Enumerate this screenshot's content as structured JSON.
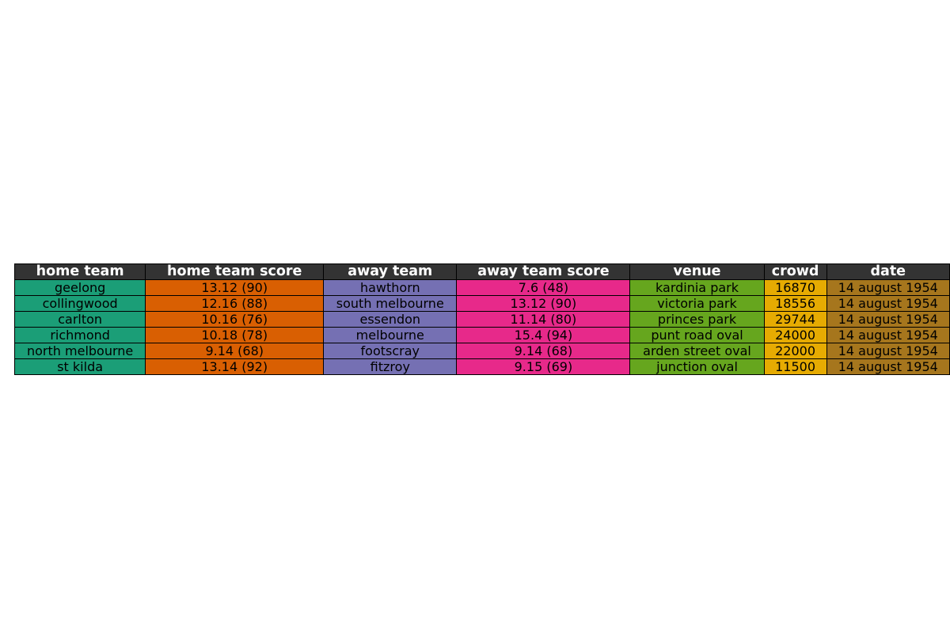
{
  "chart_data": {
    "type": "table",
    "columns": [
      "home team",
      "home team score",
      "away team",
      "away team score",
      "venue",
      "crowd",
      "date"
    ],
    "rows": [
      [
        "geelong",
        "13.12 (90)",
        "hawthorn",
        "7.6 (48)",
        "kardinia park",
        "16870",
        "14 august 1954"
      ],
      [
        "collingwood",
        "12.16 (88)",
        "south melbourne",
        "13.12 (90)",
        "victoria park",
        "18556",
        "14 august 1954"
      ],
      [
        "carlton",
        "10.16 (76)",
        "essendon",
        "11.14 (80)",
        "princes park",
        "29744",
        "14 august 1954"
      ],
      [
        "richmond",
        "10.18 (78)",
        "melbourne",
        "15.4 (94)",
        "punt road oval",
        "24000",
        "14 august 1954"
      ],
      [
        "north melbourne",
        "9.14 (68)",
        "footscray",
        "9.14 (68)",
        "arden street oval",
        "22000",
        "14 august 1954"
      ],
      [
        "st kilda",
        "13.14 (92)",
        "fitzroy",
        "9.15 (69)",
        "junction oval",
        "11500",
        "14 august 1954"
      ]
    ],
    "header_color": "#333333",
    "column_colors": [
      "#1b9e77",
      "#d95f02",
      "#7570b3",
      "#e7298a",
      "#66a61e",
      "#e6ab02",
      "#a6761d"
    ]
  }
}
